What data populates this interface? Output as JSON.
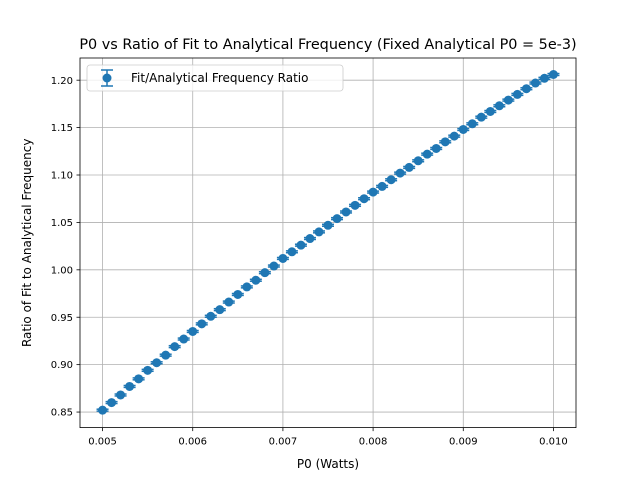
{
  "chart_data": {
    "type": "scatter",
    "title": "P0 vs Ratio of Fit to Analytical Frequency (Fixed Analytical P0 = 5e-3)",
    "xlabel": "P0 (Watts)",
    "ylabel": "Ratio of Fit to Analytical Frequency",
    "xlim": [
      0.00475,
      0.01025
    ],
    "ylim": [
      0.8336,
      1.2234
    ],
    "xticks": [
      0.005,
      0.006,
      0.007,
      0.008,
      0.009,
      0.01
    ],
    "xtick_labels": [
      "0.005",
      "0.006",
      "0.007",
      "0.008",
      "0.009",
      "0.010"
    ],
    "yticks": [
      0.85,
      0.9,
      0.95,
      1.0,
      1.05,
      1.1,
      1.15,
      1.2
    ],
    "ytick_labels": [
      "0.85",
      "0.90",
      "0.95",
      "1.00",
      "1.05",
      "1.10",
      "1.15",
      "1.20"
    ],
    "grid": true,
    "legend_position": "upper-left",
    "error_bars": true,
    "color": "#1f77b4",
    "series": [
      {
        "name": "Fit/Analytical Frequency Ratio",
        "x": [
          0.005,
          0.0051,
          0.0052,
          0.0053,
          0.0054,
          0.0055,
          0.0056,
          0.0057,
          0.0058,
          0.0059,
          0.006,
          0.0061,
          0.0062,
          0.0063,
          0.0064,
          0.0065,
          0.0066,
          0.0067,
          0.0068,
          0.0069,
          0.007,
          0.0071,
          0.0072,
          0.0073,
          0.0074,
          0.0075,
          0.0076,
          0.0077,
          0.0078,
          0.0079,
          0.008,
          0.0081,
          0.0082,
          0.0083,
          0.0084,
          0.0085,
          0.0086,
          0.0087,
          0.0088,
          0.0089,
          0.009,
          0.0091,
          0.0092,
          0.0093,
          0.0094,
          0.0095,
          0.0096,
          0.0097,
          0.0098,
          0.0099,
          0.01
        ],
        "y": [
          0.852,
          0.86,
          0.868,
          0.877,
          0.885,
          0.894,
          0.902,
          0.91,
          0.919,
          0.927,
          0.935,
          0.943,
          0.951,
          0.958,
          0.966,
          0.974,
          0.982,
          0.989,
          0.997,
          1.004,
          1.012,
          1.019,
          1.026,
          1.033,
          1.04,
          1.047,
          1.054,
          1.061,
          1.068,
          1.075,
          1.082,
          1.088,
          1.095,
          1.102,
          1.108,
          1.115,
          1.122,
          1.128,
          1.135,
          1.141,
          1.148,
          1.154,
          1.161,
          1.167,
          1.173,
          1.179,
          1.185,
          1.191,
          1.197,
          1.202,
          1.206
        ],
        "yerr": 0.001
      }
    ]
  }
}
